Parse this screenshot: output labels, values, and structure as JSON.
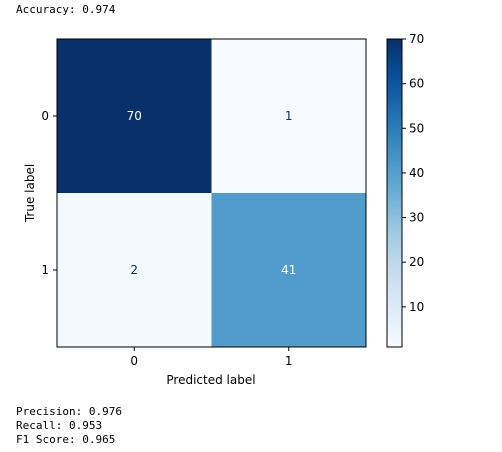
{
  "output": {
    "accuracy_line": "Accuracy: 0.974",
    "metric_lines": [
      "Precision: 0.976",
      "Recall: 0.953",
      "F1 Score: 0.965"
    ]
  },
  "chart_data": {
    "type": "heatmap",
    "rows": [
      "0",
      "1"
    ],
    "cols": [
      "0",
      "1"
    ],
    "values": [
      [
        70,
        1
      ],
      [
        2,
        41
      ]
    ],
    "xlabel": "Predicted label",
    "ylabel": "True label",
    "colormap": "Blues",
    "vmin": 1,
    "vmax": 70,
    "colorbar_ticks": [
      10,
      20,
      30,
      40,
      50,
      60,
      70
    ],
    "colors": {
      "low": "#f7fbff",
      "high": "#08306b",
      "light_text": "#ffffff",
      "dark_text": "#08306b"
    }
  }
}
